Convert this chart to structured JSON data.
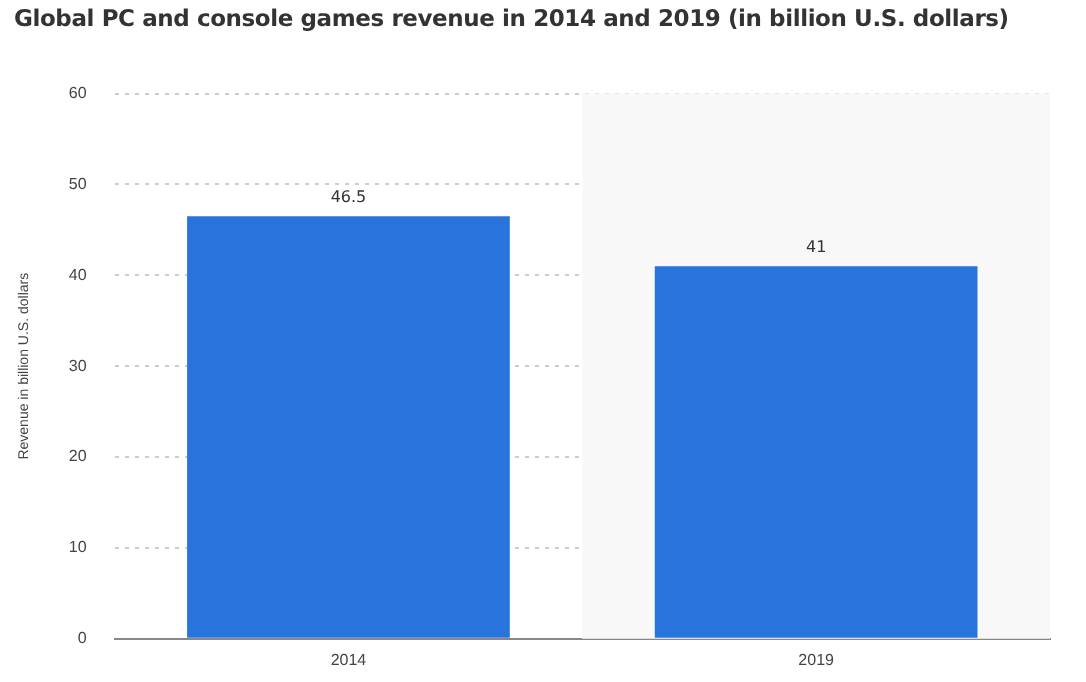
{
  "chart_data": {
    "type": "bar",
    "title": "Global PC and console games revenue in 2014 and 2019 (in billion U.S. dollars)",
    "ylabel": "Revenue in billion U.S. dollars",
    "categories": [
      "2014",
      "2019"
    ],
    "values": [
      46.5,
      41
    ],
    "color": "#2874dc",
    "ylim": [
      0,
      60
    ],
    "yticks": [
      0,
      10,
      20,
      30,
      40,
      50,
      60
    ],
    "grid": "y",
    "data_labels": true,
    "legend": false,
    "bands": [
      {
        "axis": "x",
        "from": "2019",
        "to": "2019",
        "color": "#f8f8f8"
      }
    ]
  }
}
